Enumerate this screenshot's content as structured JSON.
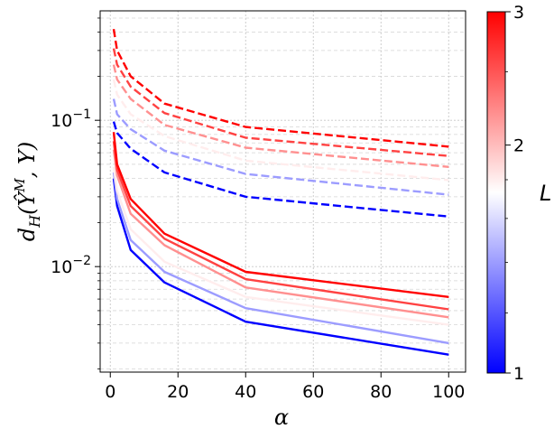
{
  "chart_data": {
    "type": "line",
    "title": "",
    "xlabel": "α",
    "ylabel_parts": {
      "d": "d",
      "sub": "H",
      "open": "(",
      "yhat": "Ŷ",
      "sup": "M",
      "rest": ", Y)"
    },
    "xscale": "linear",
    "yscale": "log",
    "xlim": [
      -3,
      105
    ],
    "ylim": [
      0.0019,
      0.56
    ],
    "grid": true,
    "x_ticks": [
      0,
      20,
      40,
      60,
      80,
      100
    ],
    "x_tick_labels": [
      "0",
      "20",
      "40",
      "60",
      "80",
      "100"
    ],
    "y_ticks": [
      0.01,
      0.1
    ],
    "y_tick_labels": [
      {
        "base": "10",
        "exp": "−2"
      },
      {
        "base": "10",
        "exp": "−1"
      }
    ],
    "x": [
      1,
      2,
      6,
      16,
      40,
      100
    ],
    "series": [
      {
        "L": 1.0,
        "style": "solid",
        "values": [
          0.04,
          0.026,
          0.013,
          0.0078,
          0.0042,
          0.0025
        ]
      },
      {
        "L": 1.4,
        "style": "solid",
        "values": [
          0.044,
          0.029,
          0.0152,
          0.0092,
          0.0052,
          0.003
        ]
      },
      {
        "L": 1.8,
        "style": "solid",
        "values": [
          0.048,
          0.033,
          0.018,
          0.0108,
          0.0062,
          0.004
        ]
      },
      {
        "L": 2.2,
        "style": "solid",
        "values": [
          0.063,
          0.042,
          0.023,
          0.014,
          0.0072,
          0.0045
        ]
      },
      {
        "L": 2.6,
        "style": "solid",
        "values": [
          0.072,
          0.046,
          0.026,
          0.0155,
          0.0082,
          0.0051
        ]
      },
      {
        "L": 3.0,
        "style": "solid",
        "values": [
          0.083,
          0.05,
          0.029,
          0.0168,
          0.0092,
          0.0062
        ]
      },
      {
        "L": 1.0,
        "style": "dashed",
        "values": [
          0.098,
          0.082,
          0.064,
          0.044,
          0.03,
          0.022
        ]
      },
      {
        "L": 1.4,
        "style": "dashed",
        "values": [
          0.14,
          0.11,
          0.087,
          0.062,
          0.043,
          0.031
        ]
      },
      {
        "L": 1.8,
        "style": "dashed",
        "values": [
          0.19,
          0.15,
          0.11,
          0.078,
          0.053,
          0.039
        ]
      },
      {
        "L": 2.2,
        "style": "dashed",
        "values": [
          0.24,
          0.19,
          0.14,
          0.093,
          0.065,
          0.048
        ]
      },
      {
        "L": 2.6,
        "style": "dashed",
        "values": [
          0.31,
          0.24,
          0.17,
          0.112,
          0.076,
          0.057
        ]
      },
      {
        "L": 3.0,
        "style": "dashed",
        "values": [
          0.42,
          0.3,
          0.2,
          0.13,
          0.09,
          0.066
        ]
      }
    ],
    "colorbar": {
      "label": "L",
      "scale": "log",
      "range": [
        1,
        3
      ],
      "ticks": [
        1,
        2,
        3
      ],
      "tick_labels": [
        "1",
        "2",
        "3"
      ],
      "colormap": "bwr",
      "colors": {
        "low": "#0000ff",
        "mid": "#ffffff",
        "high": "#ff0000"
      }
    }
  }
}
